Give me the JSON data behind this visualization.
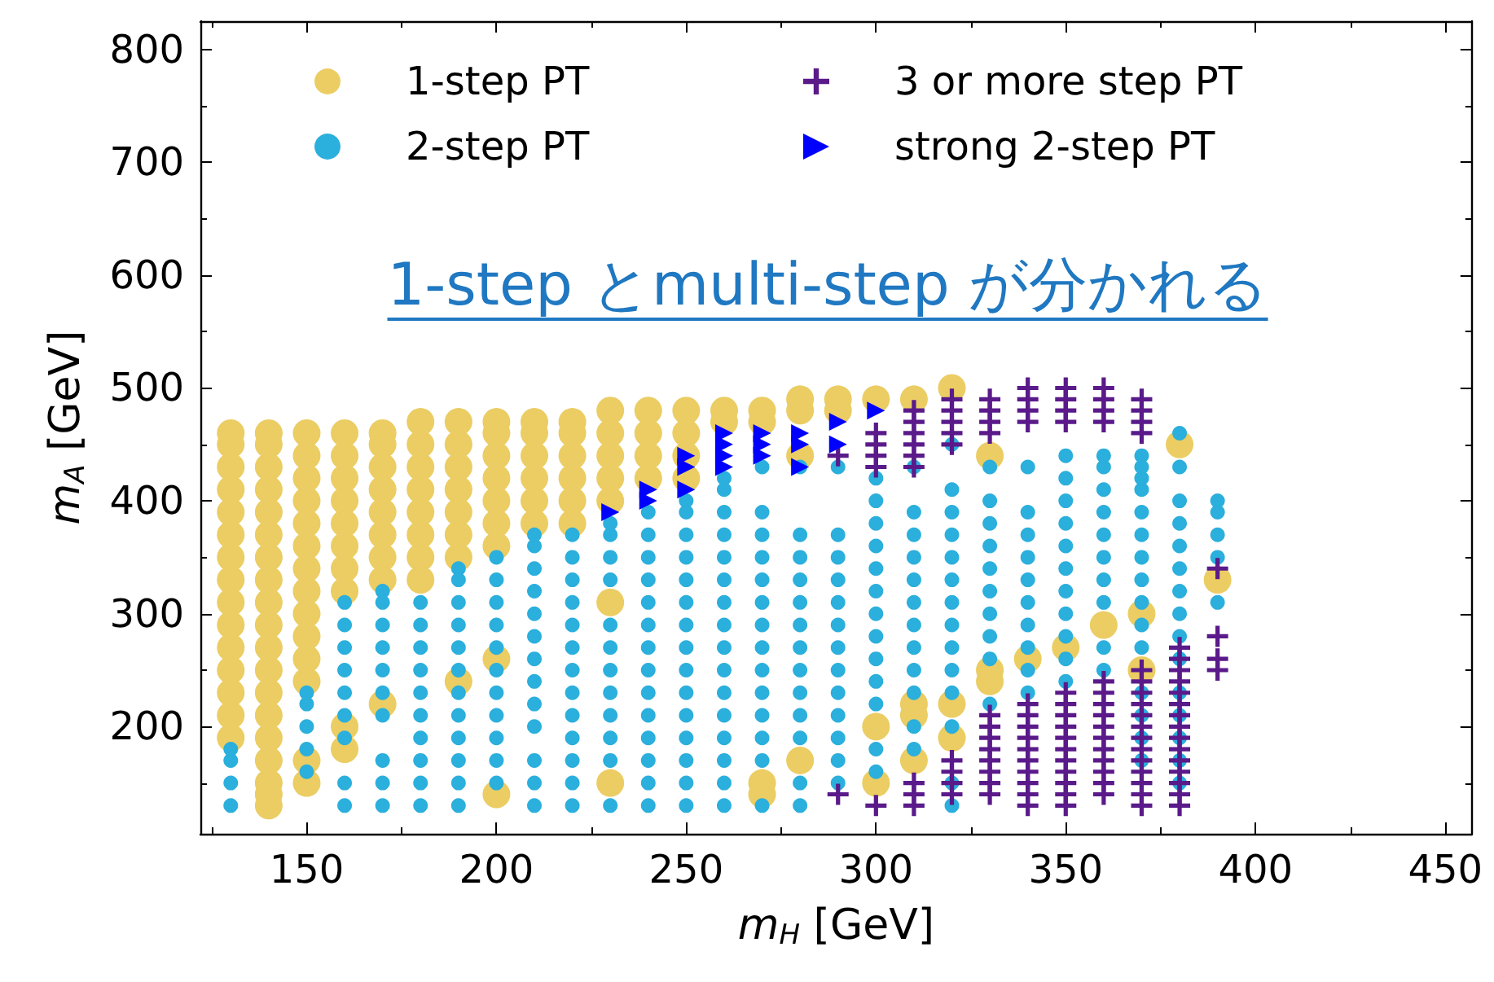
{
  "chart_data": {
    "type": "scatter",
    "xlabel": "m$_{H}$ [GeV]",
    "ylabel": "m$_{A}$ [GeV]",
    "xlim": [
      122,
      457
    ],
    "ylim": [
      105,
      825
    ],
    "xticks": [
      150,
      200,
      250,
      300,
      350,
      400,
      450
    ],
    "yticks": [
      200,
      300,
      400,
      500,
      600,
      700,
      800
    ],
    "grid": false,
    "legend": "top",
    "annotations": [
      "1-step とmulti-step が分かれる"
    ],
    "series": [
      {
        "name": "1-step PT",
        "color": "#ebcd63",
        "marker": "circle",
        "x": [
          130,
          130,
          130,
          130,
          130,
          130,
          130,
          130,
          130,
          130,
          130,
          130,
          130,
          130,
          130,
          140,
          140,
          140,
          140,
          140,
          140,
          140,
          140,
          140,
          140,
          140,
          140,
          140,
          140,
          140,
          140,
          140,
          140,
          140,
          150,
          150,
          150,
          150,
          150,
          150,
          150,
          150,
          150,
          150,
          150,
          150,
          150,
          150,
          160,
          160,
          160,
          160,
          160,
          160,
          160,
          160,
          160,
          160,
          170,
          170,
          170,
          170,
          170,
          170,
          170,
          170,
          170,
          180,
          180,
          180,
          180,
          180,
          180,
          180,
          180,
          190,
          190,
          190,
          190,
          190,
          190,
          190,
          190,
          200,
          200,
          200,
          200,
          200,
          200,
          200,
          200,
          200,
          210,
          210,
          210,
          210,
          210,
          210,
          220,
          220,
          220,
          220,
          220,
          220,
          230,
          230,
          230,
          230,
          230,
          230,
          230,
          240,
          240,
          240,
          240,
          250,
          250,
          250,
          250,
          260,
          260,
          270,
          270,
          270,
          270,
          280,
          280,
          280,
          280,
          290,
          290,
          300,
          300,
          300,
          310,
          310,
          310,
          310,
          320,
          320,
          320,
          330,
          330,
          330,
          340,
          350,
          360,
          370,
          370,
          380,
          390
        ],
        "values": [
          190,
          210,
          230,
          250,
          270,
          290,
          310,
          330,
          350,
          370,
          390,
          410,
          430,
          450,
          460,
          130,
          150,
          170,
          190,
          210,
          230,
          250,
          270,
          290,
          310,
          330,
          350,
          370,
          390,
          410,
          430,
          450,
          460,
          140,
          150,
          240,
          260,
          280,
          300,
          320,
          340,
          360,
          380,
          400,
          420,
          440,
          460,
          170,
          180,
          320,
          340,
          360,
          380,
          400,
          420,
          440,
          460,
          200,
          330,
          350,
          370,
          390,
          410,
          430,
          450,
          460,
          220,
          330,
          350,
          370,
          390,
          410,
          430,
          450,
          470,
          240,
          350,
          370,
          390,
          410,
          430,
          450,
          470,
          140,
          260,
          360,
          380,
          400,
          420,
          440,
          460,
          470,
          380,
          400,
          420,
          440,
          460,
          470,
          380,
          400,
          420,
          440,
          460,
          470,
          150,
          310,
          400,
          420,
          440,
          460,
          480,
          420,
          440,
          460,
          480,
          420,
          440,
          460,
          480,
          470,
          480,
          140,
          150,
          470,
          480,
          170,
          440,
          480,
          490,
          480,
          490,
          150,
          200,
          490,
          170,
          210,
          220,
          490,
          190,
          220,
          500,
          240,
          250,
          440,
          260,
          270,
          290,
          250,
          300,
          450,
          330
        ]
      },
      {
        "name": "2-step PT",
        "color": "#2bafdc",
        "marker": "circle",
        "x": [
          130,
          130,
          130,
          130,
          150,
          150,
          150,
          150,
          150,
          160,
          160,
          160,
          160,
          160,
          160,
          160,
          160,
          160,
          170,
          170,
          170,
          170,
          170,
          170,
          170,
          170,
          170,
          170,
          180,
          180,
          180,
          180,
          180,
          180,
          180,
          180,
          180,
          180,
          190,
          190,
          190,
          190,
          190,
          190,
          190,
          190,
          190,
          190,
          190,
          190,
          200,
          200,
          200,
          200,
          200,
          200,
          200,
          200,
          200,
          200,
          200,
          210,
          210,
          210,
          210,
          210,
          210,
          210,
          210,
          210,
          210,
          210,
          210,
          210,
          220,
          220,
          220,
          220,
          220,
          220,
          220,
          220,
          220,
          220,
          220,
          220,
          220,
          230,
          230,
          230,
          230,
          230,
          230,
          230,
          230,
          230,
          230,
          230,
          230,
          240,
          240,
          240,
          240,
          240,
          240,
          240,
          240,
          240,
          240,
          240,
          240,
          240,
          240,
          250,
          250,
          250,
          250,
          250,
          250,
          250,
          250,
          250,
          250,
          250,
          250,
          250,
          250,
          250,
          260,
          260,
          260,
          260,
          260,
          260,
          260,
          260,
          260,
          260,
          260,
          260,
          260,
          260,
          260,
          260,
          270,
          270,
          270,
          270,
          270,
          270,
          270,
          270,
          270,
          270,
          270,
          270,
          270,
          270,
          280,
          280,
          280,
          280,
          280,
          280,
          280,
          280,
          280,
          280,
          280,
          280,
          280,
          290,
          290,
          290,
          290,
          290,
          290,
          290,
          290,
          290,
          290,
          290,
          290,
          290,
          300,
          300,
          300,
          300,
          300,
          300,
          300,
          300,
          300,
          300,
          300,
          300,
          300,
          310,
          310,
          310,
          310,
          310,
          310,
          310,
          310,
          310,
          310,
          310,
          310,
          320,
          320,
          320,
          320,
          320,
          320,
          320,
          320,
          320,
          320,
          320,
          320,
          320,
          320,
          330,
          330,
          330,
          330,
          330,
          330,
          330,
          330,
          330,
          330,
          340,
          340,
          340,
          340,
          340,
          340,
          340,
          340,
          340,
          340,
          350,
          350,
          350,
          350,
          350,
          350,
          350,
          350,
          350,
          350,
          350,
          360,
          360,
          360,
          360,
          360,
          360,
          360,
          360,
          360,
          360,
          370,
          370,
          370,
          370,
          370,
          370,
          370,
          370,
          370,
          370,
          370,
          370,
          370,
          370,
          370,
          380,
          380,
          380,
          380,
          380,
          380,
          380,
          380,
          380,
          380,
          380,
          380,
          380,
          380,
          380,
          390,
          390,
          390,
          390,
          390
        ],
        "values": [
          130,
          150,
          170,
          180,
          160,
          180,
          200,
          220,
          230,
          130,
          150,
          190,
          210,
          230,
          250,
          270,
          290,
          310,
          130,
          150,
          170,
          210,
          230,
          250,
          270,
          290,
          310,
          320,
          130,
          150,
          170,
          190,
          210,
          230,
          250,
          270,
          290,
          310,
          130,
          150,
          170,
          190,
          210,
          230,
          250,
          270,
          290,
          310,
          330,
          340,
          150,
          170,
          190,
          210,
          230,
          250,
          270,
          290,
          310,
          330,
          350,
          130,
          150,
          170,
          200,
          220,
          240,
          260,
          280,
          300,
          320,
          340,
          360,
          370,
          130,
          150,
          170,
          190,
          210,
          230,
          250,
          270,
          290,
          310,
          330,
          350,
          370,
          130,
          170,
          190,
          210,
          230,
          250,
          270,
          290,
          330,
          350,
          370,
          380,
          130,
          150,
          170,
          190,
          210,
          230,
          250,
          270,
          290,
          310,
          330,
          350,
          370,
          390,
          130,
          150,
          170,
          190,
          210,
          230,
          250,
          270,
          290,
          310,
          330,
          350,
          370,
          390,
          400,
          130,
          150,
          170,
          190,
          210,
          230,
          250,
          270,
          290,
          310,
          330,
          350,
          370,
          390,
          410,
          420,
          130,
          170,
          190,
          210,
          230,
          250,
          270,
          290,
          310,
          330,
          350,
          370,
          390,
          430,
          130,
          150,
          190,
          210,
          230,
          250,
          270,
          290,
          310,
          330,
          350,
          370,
          430,
          150,
          170,
          190,
          210,
          230,
          250,
          270,
          290,
          310,
          330,
          350,
          370,
          430,
          160,
          180,
          220,
          240,
          260,
          280,
          300,
          320,
          340,
          360,
          380,
          400,
          420,
          180,
          200,
          230,
          250,
          270,
          290,
          310,
          330,
          350,
          370,
          390,
          430,
          130,
          150,
          200,
          230,
          250,
          270,
          290,
          310,
          330,
          350,
          370,
          390,
          410,
          450,
          220,
          260,
          280,
          300,
          320,
          340,
          360,
          380,
          400,
          430,
          230,
          250,
          270,
          290,
          310,
          330,
          350,
          370,
          390,
          430,
          240,
          260,
          280,
          300,
          320,
          340,
          360,
          380,
          400,
          420,
          440,
          250,
          270,
          310,
          330,
          350,
          370,
          390,
          410,
          430,
          440,
          170,
          190,
          210,
          230,
          270,
          290,
          310,
          330,
          350,
          370,
          390,
          410,
          420,
          430,
          440,
          150,
          170,
          190,
          210,
          230,
          260,
          280,
          300,
          320,
          340,
          360,
          380,
          400,
          430,
          460,
          310,
          350,
          370,
          390,
          400
        ]
      },
      {
        "name": "3 or more step PT",
        "color": "#5a1a8a",
        "marker": "cross",
        "x": [
          290,
          290,
          300,
          300,
          300,
          300,
          300,
          310,
          310,
          310,
          310,
          310,
          310,
          310,
          310,
          310,
          320,
          320,
          320,
          320,
          320,
          320,
          320,
          320,
          320,
          330,
          330,
          330,
          330,
          330,
          330,
          330,
          330,
          330,
          330,
          330,
          330,
          340,
          340,
          340,
          340,
          340,
          340,
          340,
          340,
          340,
          340,
          340,
          340,
          340,
          340,
          350,
          350,
          350,
          350,
          350,
          350,
          350,
          350,
          350,
          350,
          350,
          350,
          350,
          350,
          350,
          360,
          360,
          360,
          360,
          360,
          360,
          360,
          360,
          360,
          360,
          360,
          360,
          360,
          360,
          360,
          370,
          370,
          370,
          370,
          370,
          370,
          370,
          370,
          370,
          370,
          370,
          370,
          370,
          370,
          370,
          370,
          370,
          380,
          380,
          380,
          380,
          380,
          380,
          380,
          380,
          380,
          380,
          380,
          380,
          380,
          380,
          380,
          390,
          390,
          390,
          390
        ],
        "values": [
          140,
          440,
          130,
          430,
          440,
          450,
          460,
          130,
          140,
          150,
          430,
          440,
          450,
          460,
          470,
          480,
          140,
          150,
          160,
          170,
          450,
          460,
          470,
          480,
          490,
          140,
          150,
          160,
          170,
          180,
          190,
          200,
          210,
          460,
          470,
          480,
          490,
          130,
          140,
          150,
          160,
          170,
          180,
          190,
          200,
          210,
          220,
          470,
          480,
          490,
          500,
          130,
          140,
          150,
          160,
          170,
          180,
          190,
          200,
          210,
          220,
          230,
          470,
          480,
          490,
          500,
          140,
          150,
          160,
          170,
          180,
          190,
          200,
          210,
          220,
          230,
          240,
          470,
          480,
          490,
          500,
          130,
          140,
          150,
          160,
          170,
          180,
          190,
          200,
          210,
          220,
          230,
          240,
          250,
          460,
          470,
          480,
          490,
          130,
          140,
          150,
          160,
          170,
          180,
          190,
          200,
          210,
          220,
          230,
          240,
          250,
          260,
          270,
          250,
          260,
          280,
          340
        ]
      },
      {
        "name": "strong 2-step PT",
        "color": "#0000ff",
        "marker": "triangle",
        "x": [
          230,
          240,
          240,
          250,
          250,
          250,
          260,
          260,
          260,
          260,
          270,
          270,
          270,
          280,
          280,
          280,
          290,
          290,
          300
        ],
        "values": [
          390,
          400,
          410,
          410,
          430,
          440,
          430,
          440,
          450,
          460,
          440,
          450,
          460,
          430,
          450,
          460,
          450,
          470,
          480
        ]
      }
    ]
  }
}
